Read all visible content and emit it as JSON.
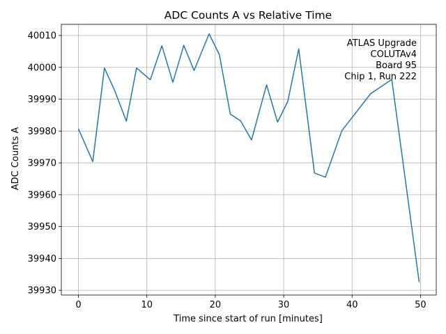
{
  "chart_data": {
    "type": "line",
    "title": "ADC Counts A vs Relative Time",
    "xlabel": "Time since start of run [minutes]",
    "ylabel": "ADC Counts A",
    "xlim": [
      -2.5,
      52.3
    ],
    "ylim": [
      39928.5,
      40013.5
    ],
    "xticks": [
      0,
      10,
      20,
      30,
      40,
      50
    ],
    "yticks": [
      39930,
      39940,
      39950,
      39960,
      39970,
      39980,
      39990,
      40000,
      40010
    ],
    "grid": true,
    "line_color": "#1f77b4",
    "annotation": [
      "ATLAS Upgrade",
      "COLUTAv4",
      "Board 95",
      "Chip 1, Run 222"
    ],
    "annotation_position": "top-right",
    "series": [
      {
        "name": "ADC Counts A",
        "x": [
          0.0,
          2.1,
          3.8,
          5.3,
          7.0,
          8.5,
          10.5,
          12.2,
          13.8,
          15.4,
          16.9,
          19.1,
          20.6,
          22.2,
          23.7,
          25.3,
          27.5,
          29.1,
          30.6,
          32.2,
          34.5,
          36.1,
          38.5,
          42.7,
          45.8,
          49.8
        ],
        "values": [
          39980.7,
          39970.4,
          39999.8,
          39992.7,
          39983.1,
          39999.8,
          39996.1,
          40006.8,
          39995.3,
          40006.9,
          39999.0,
          40010.5,
          40004.0,
          39985.3,
          39983.2,
          39977.2,
          39994.5,
          39982.8,
          39989.3,
          40005.8,
          39966.8,
          39965.5,
          39980.1,
          39991.7,
          39996.2,
          39932.6
        ]
      }
    ]
  }
}
